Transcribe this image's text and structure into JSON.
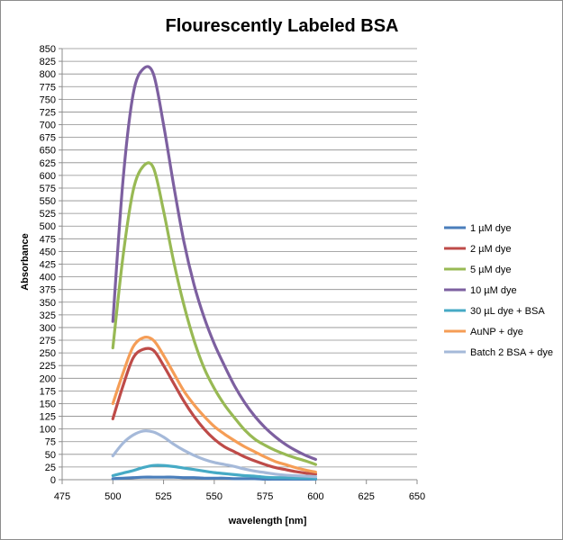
{
  "chart_data": {
    "type": "line",
    "title": "Flourescently Labeled BSA",
    "xlabel": "wavelength [nm]",
    "ylabel": "Absorbance",
    "xlim": [
      475,
      650
    ],
    "ylim": [
      0,
      850
    ],
    "xticks": [
      475,
      500,
      525,
      550,
      575,
      600,
      625,
      650
    ],
    "yticks": [
      0,
      25,
      50,
      75,
      100,
      125,
      150,
      175,
      200,
      225,
      250,
      275,
      300,
      325,
      350,
      375,
      400,
      425,
      450,
      475,
      500,
      525,
      550,
      575,
      600,
      625,
      650,
      675,
      700,
      725,
      750,
      775,
      800,
      825,
      850
    ],
    "grid": true,
    "legend_position": "right",
    "x": [
      500,
      505,
      510,
      515,
      520,
      525,
      530,
      535,
      540,
      545,
      550,
      555,
      560,
      565,
      570,
      575,
      580,
      585,
      590,
      595,
      600
    ],
    "series": [
      {
        "name": "1 µM dye",
        "color": "#4a7ebb",
        "values": [
          2,
          3,
          4,
          5,
          5,
          5,
          5,
          4,
          4,
          3,
          3,
          3,
          2,
          2,
          2,
          1,
          1,
          1,
          1,
          1,
          1
        ]
      },
      {
        "name": "2 µM dye",
        "color": "#be4b48",
        "values": [
          120,
          185,
          240,
          257,
          255,
          225,
          190,
          155,
          125,
          100,
          80,
          65,
          55,
          45,
          37,
          30,
          24,
          20,
          16,
          13,
          11
        ]
      },
      {
        "name": "5 µM dye",
        "color": "#98b954",
        "values": [
          260,
          440,
          570,
          618,
          615,
          530,
          430,
          345,
          275,
          220,
          180,
          148,
          122,
          98,
          80,
          68,
          58,
          50,
          43,
          37,
          30
        ]
      },
      {
        "name": "10 µM dye",
        "color": "#7d60a0",
        "values": [
          312,
          590,
          760,
          810,
          800,
          700,
          580,
          470,
          385,
          320,
          268,
          225,
          185,
          152,
          125,
          103,
          85,
          70,
          58,
          48,
          40
        ]
      },
      {
        "name": "30 µL dye + BSA",
        "color": "#46aac5",
        "values": [
          8,
          13,
          18,
          24,
          28,
          28,
          26,
          23,
          20,
          17,
          14,
          12,
          10,
          8,
          7,
          5,
          4,
          4,
          3,
          3,
          2
        ]
      },
      {
        "name": "AuNP + dye",
        "color": "#f59d56",
        "values": [
          150,
          210,
          262,
          280,
          275,
          245,
          210,
          175,
          148,
          125,
          105,
          90,
          77,
          65,
          55,
          45,
          36,
          30,
          24,
          19,
          15
        ]
      },
      {
        "name": "Batch 2 BSA + dye",
        "color": "#a5b9d9",
        "values": [
          47,
          72,
          88,
          96,
          94,
          84,
          70,
          58,
          48,
          40,
          34,
          30,
          26,
          21,
          17,
          14,
          11,
          9,
          8,
          7,
          6
        ]
      }
    ]
  }
}
